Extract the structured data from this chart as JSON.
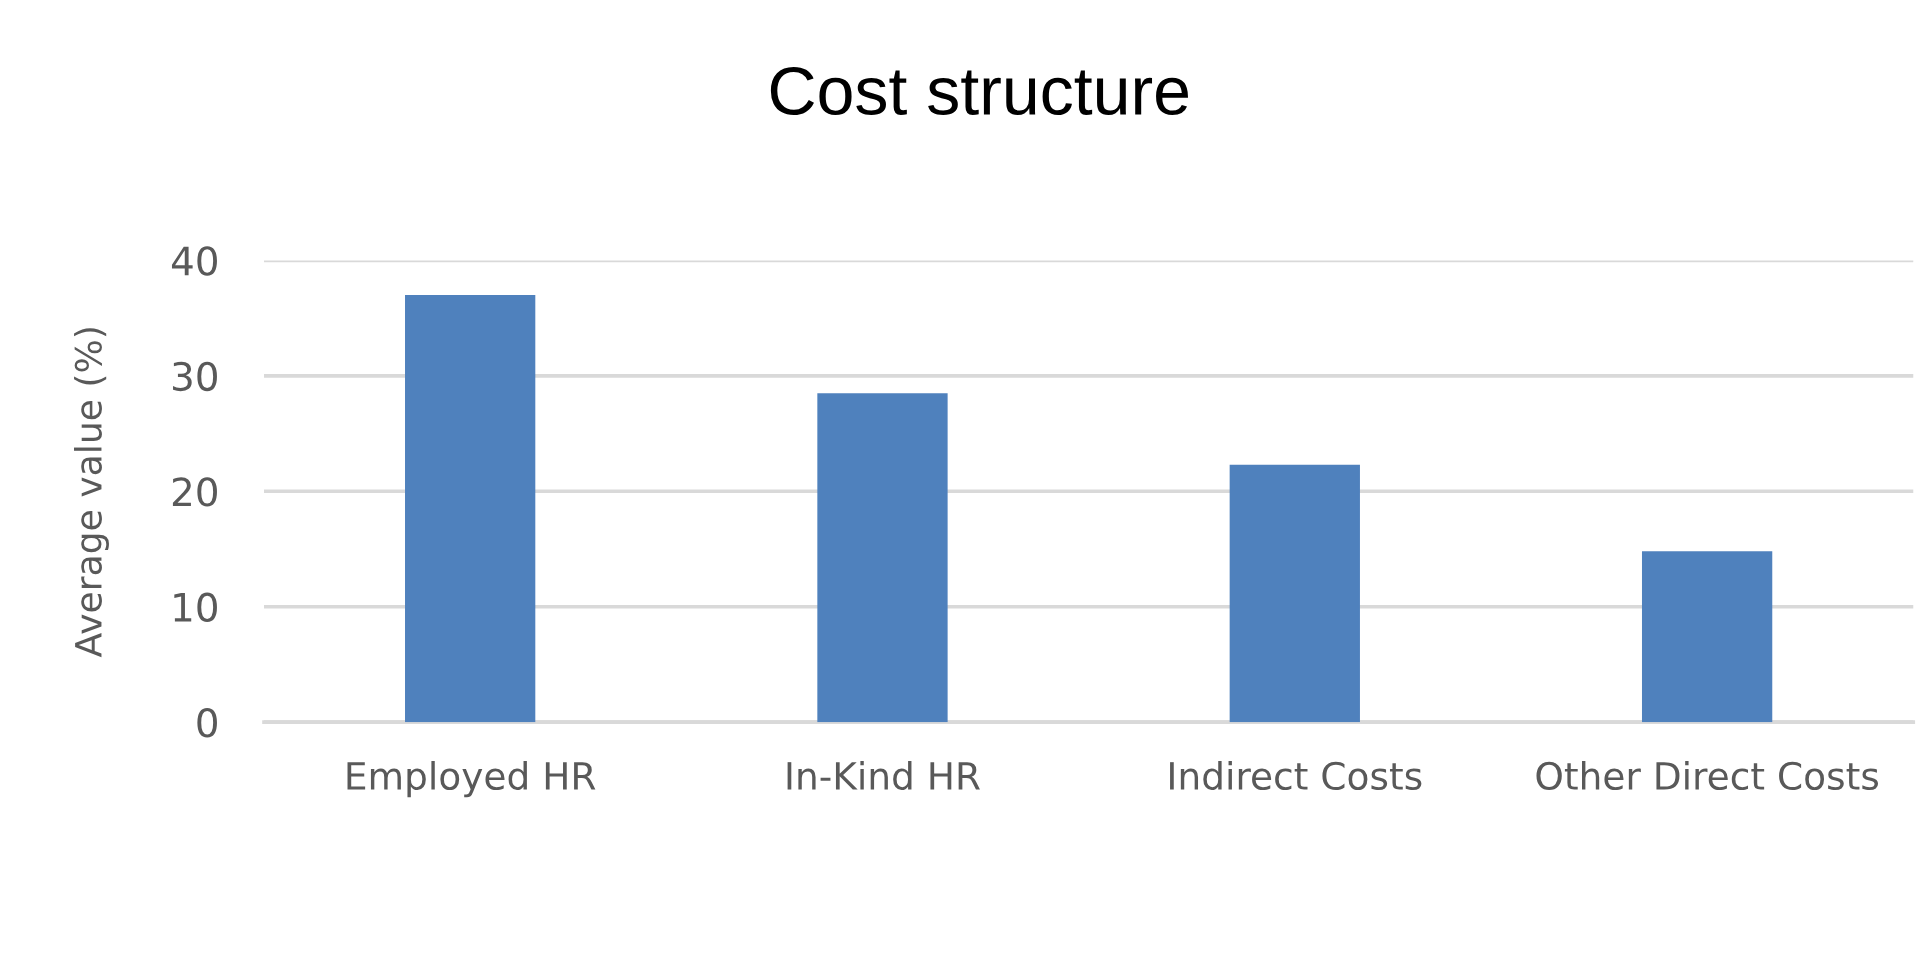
{
  "chart_data": {
    "type": "bar",
    "title": "Cost structure",
    "ylabel": "Average value (%)",
    "categories": [
      "Employed HR",
      "In-Kind HR",
      "Indirect Costs",
      "Other Direct Costs"
    ],
    "values": [
      37.0,
      28.5,
      22.3,
      14.8
    ],
    "color": "#4f81bd",
    "ylim": [
      0,
      40
    ],
    "yticks": [
      0,
      10,
      20,
      30,
      40
    ],
    "grid": "y",
    "legend": false
  }
}
